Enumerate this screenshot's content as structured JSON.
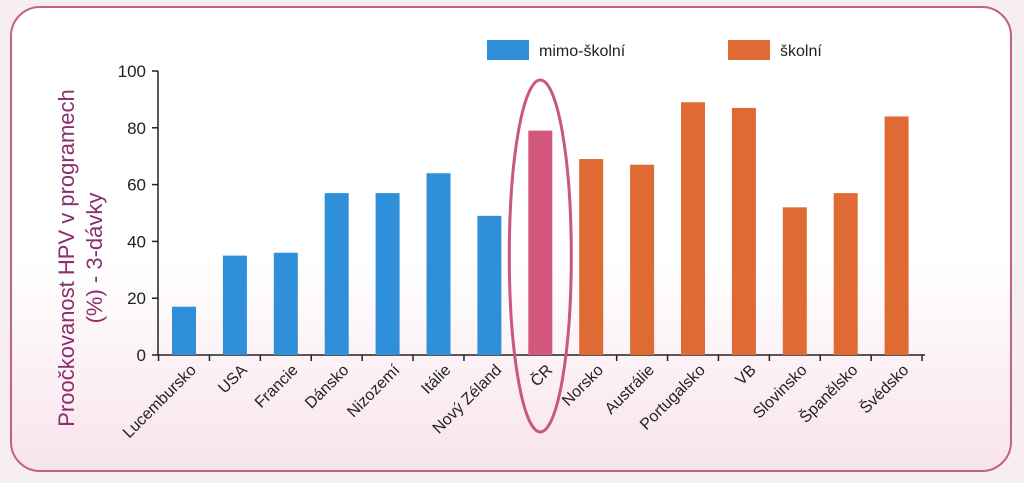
{
  "chart_data": {
    "type": "bar",
    "ylabel": "Proočkovanost HPV v programech (%) - 3-dávky",
    "ylabel_lines": [
      "Proočkovanost HPV v programech",
      "(%) - 3-dávky"
    ],
    "xlabel": "",
    "ylim": [
      0,
      100
    ],
    "yticks": [
      0,
      20,
      40,
      60,
      80,
      100
    ],
    "legend": [
      {
        "label": "mimo-školní",
        "color": "#2f8fd8"
      },
      {
        "label": "školní",
        "color": "#e06a33"
      }
    ],
    "categories": [
      "Lucembursko",
      "USA",
      "Francie",
      "Dánsko",
      "Nizozemí",
      "Itálie",
      "Nový Zéland",
      "ČR",
      "Norsko",
      "Austrálie",
      "Portugalsko",
      "VB",
      "Slovinsko",
      "Španělsko",
      "Švédsko"
    ],
    "values": [
      17,
      35,
      36,
      57,
      57,
      64,
      49,
      79,
      69,
      67,
      89,
      87,
      52,
      57,
      84
    ],
    "groups": [
      "mimo-školní",
      "mimo-školní",
      "mimo-školní",
      "mimo-školní",
      "mimo-školní",
      "mimo-školní",
      "mimo-školní",
      "ČR",
      "školní",
      "školní",
      "školní",
      "školní",
      "školní",
      "školní",
      "školní"
    ],
    "highlight": {
      "category": "ČR",
      "color": "#d4587e",
      "outline_color": "#c8587f"
    },
    "colors": {
      "mimo-školní": "#2f8fd8",
      "školní": "#e06a33",
      "axis": "#222222",
      "ylabel": "#8b2f6e"
    },
    "grid": false,
    "legend_position": "top"
  }
}
